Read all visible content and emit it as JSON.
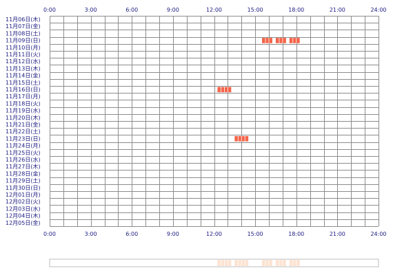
{
  "chart_data": {
    "type": "heatmap",
    "x_axis": {
      "min_hour": 0,
      "max_hour": 24,
      "tick_labels": [
        "0:00",
        "3:00",
        "6:00",
        "9:00",
        "12:00",
        "15:00",
        "18:00",
        "21:00",
        "24:00"
      ]
    },
    "rows": [
      "11月06日(木)",
      "11月07日(金)",
      "11月08日(土)",
      "11月09日(日)",
      "11月10日(月)",
      "11月11日(火)",
      "11月12日(水)",
      "11月13日(木)",
      "11月14日(金)",
      "11月15日(土)",
      "11月16日(日)",
      "11月17日(月)",
      "11月18日(火)",
      "11月19日(水)",
      "11月20日(木)",
      "11月21日(金)",
      "11月22日(土)",
      "11月23日(日)",
      "11月24日(月)",
      "11月25日(火)",
      "11月26日(水)",
      "11月27日(木)",
      "11月28日(金)",
      "11月29日(土)",
      "11月30日(日)",
      "12月01日(月)",
      "12月02日(火)",
      "12月03日(水)",
      "12月04日(木)",
      "12月05日(金)"
    ],
    "activity": [
      {
        "row": 3,
        "start_hour": 15.5,
        "end_hour": 16.25
      },
      {
        "row": 3,
        "start_hour": 16.5,
        "end_hour": 17.25
      },
      {
        "row": 3,
        "start_hour": 17.5,
        "end_hour": 18.25
      },
      {
        "row": 10,
        "start_hour": 12.25,
        "end_hour": 13.25
      },
      {
        "row": 17,
        "start_hour": 13.5,
        "end_hour": 14.5
      }
    ],
    "colors": {
      "activity": "#f4654a",
      "summary": "#fde3d2",
      "grid": "#8c8c8c",
      "labels": "#1a1a80"
    }
  }
}
